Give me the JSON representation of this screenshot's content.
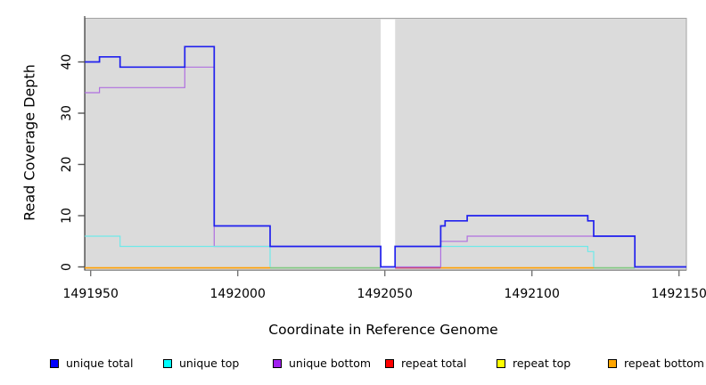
{
  "chart_data": {
    "type": "line",
    "subtype": "step-coverage",
    "title": "",
    "xlabel": "Coordinate in Reference Genome",
    "ylabel": "Read Coverage Depth",
    "x_ticks": [
      1491950,
      1492000,
      1492050,
      1492100,
      1492150
    ],
    "y_ticks": [
      0,
      10,
      20,
      30,
      40
    ],
    "xlim": [
      1491948,
      1492152.5
    ],
    "ylim": [
      0,
      48.5
    ],
    "panel_bg": "#DBDBDB",
    "gap_region": {
      "x0": 1492048.6,
      "x1": 1492053.5,
      "color": "#FFFFFF"
    },
    "baseline_segments": [
      {
        "name": "baseline-orange-left",
        "x0": 1491948,
        "x1": 1492011,
        "y": 0,
        "color": "#FF9F00"
      },
      {
        "name": "baseline-green-left",
        "x0": 1492011,
        "x1": 1492048.6,
        "y": 0,
        "color": "#7FC87F"
      },
      {
        "name": "baseline-pink",
        "x0": 1492053.5,
        "x1": 1492069,
        "y": 0,
        "color": "#CC4466"
      },
      {
        "name": "baseline-orange-right",
        "x0": 1492069,
        "x1": 1492121,
        "y": 0,
        "color": "#FF9F00"
      },
      {
        "name": "baseline-green-right",
        "x0": 1492121,
        "x1": 1492135,
        "y": 0,
        "color": "#7FC87F"
      }
    ],
    "series": [
      {
        "name": "unique total",
        "color": "#2020EE",
        "legend_color": "#0000FF",
        "width": 1.7,
        "segments": [
          [
            [
              1491948,
              40
            ],
            [
              1491953,
              40
            ],
            [
              1491953,
              41
            ],
            [
              1491960,
              41
            ],
            [
              1491960,
              39
            ],
            [
              1491982,
              39
            ],
            [
              1491982,
              43
            ],
            [
              1491992,
              43
            ],
            [
              1491992,
              8
            ],
            [
              1492011,
              8
            ],
            [
              1492011,
              4
            ],
            [
              1492048.6,
              4
            ],
            [
              1492048.6,
              0
            ],
            [
              1492053.5,
              0
            ],
            [
              1492053.5,
              4
            ],
            [
              1492069,
              4
            ],
            [
              1492069,
              8
            ],
            [
              1492070.5,
              8
            ],
            [
              1492070.5,
              9
            ],
            [
              1492078,
              9
            ],
            [
              1492078,
              10
            ],
            [
              1492119,
              10
            ],
            [
              1492119,
              9
            ],
            [
              1492121,
              9
            ],
            [
              1492121,
              6
            ],
            [
              1492135,
              6
            ],
            [
              1492135,
              0
            ],
            [
              1492152.5,
              0
            ]
          ]
        ]
      },
      {
        "name": "unique top",
        "color": "#6FE9E9",
        "legend_color": "#00FFFF",
        "width": 1.2,
        "segments": [
          [
            [
              1491948,
              6
            ],
            [
              1491960,
              6
            ],
            [
              1491960,
              4
            ],
            [
              1492011,
              4
            ],
            [
              1492011,
              0
            ]
          ],
          [
            [
              1492053.5,
              0
            ],
            [
              1492053.5,
              4
            ],
            [
              1492119,
              4
            ],
            [
              1492119,
              3
            ],
            [
              1492121,
              3
            ],
            [
              1492121,
              0
            ]
          ]
        ]
      },
      {
        "name": "unique bottom",
        "color": "#B06FE0",
        "legend_color": "#A020F0",
        "width": 1.2,
        "segments": [
          [
            [
              1491948,
              34
            ],
            [
              1491953,
              34
            ],
            [
              1491953,
              35
            ],
            [
              1491982,
              35
            ],
            [
              1491982,
              39
            ],
            [
              1491992,
              39
            ],
            [
              1491992,
              4
            ],
            [
              1492048.6,
              4
            ],
            [
              1492048.6,
              0
            ],
            [
              1492069,
              0
            ],
            [
              1492069,
              5
            ],
            [
              1492078,
              5
            ],
            [
              1492078,
              6
            ],
            [
              1492135,
              6
            ],
            [
              1492135,
              0
            ],
            [
              1492152.5,
              0
            ]
          ]
        ]
      },
      {
        "name": "repeat total",
        "color": "#CC4466",
        "legend_color": "#FF0000",
        "width": 1.2,
        "segments": []
      },
      {
        "name": "repeat top",
        "color": "#EDED00",
        "legend_color": "#FFFF00",
        "width": 1.2,
        "segments": []
      },
      {
        "name": "repeat bottom",
        "color": "#FF9F00",
        "legend_color": "#FFA500",
        "width": 1.2,
        "segments": []
      }
    ],
    "legend": [
      {
        "label": "unique total",
        "color": "#0000FF"
      },
      {
        "label": "unique top",
        "color": "#00FFFF"
      },
      {
        "label": "unique bottom",
        "color": "#A020F0"
      },
      {
        "label": "repeat total",
        "color": "#FF0000"
      },
      {
        "label": "repeat top",
        "color": "#FFFF00"
      },
      {
        "label": "repeat bottom",
        "color": "#FFA500"
      }
    ]
  }
}
